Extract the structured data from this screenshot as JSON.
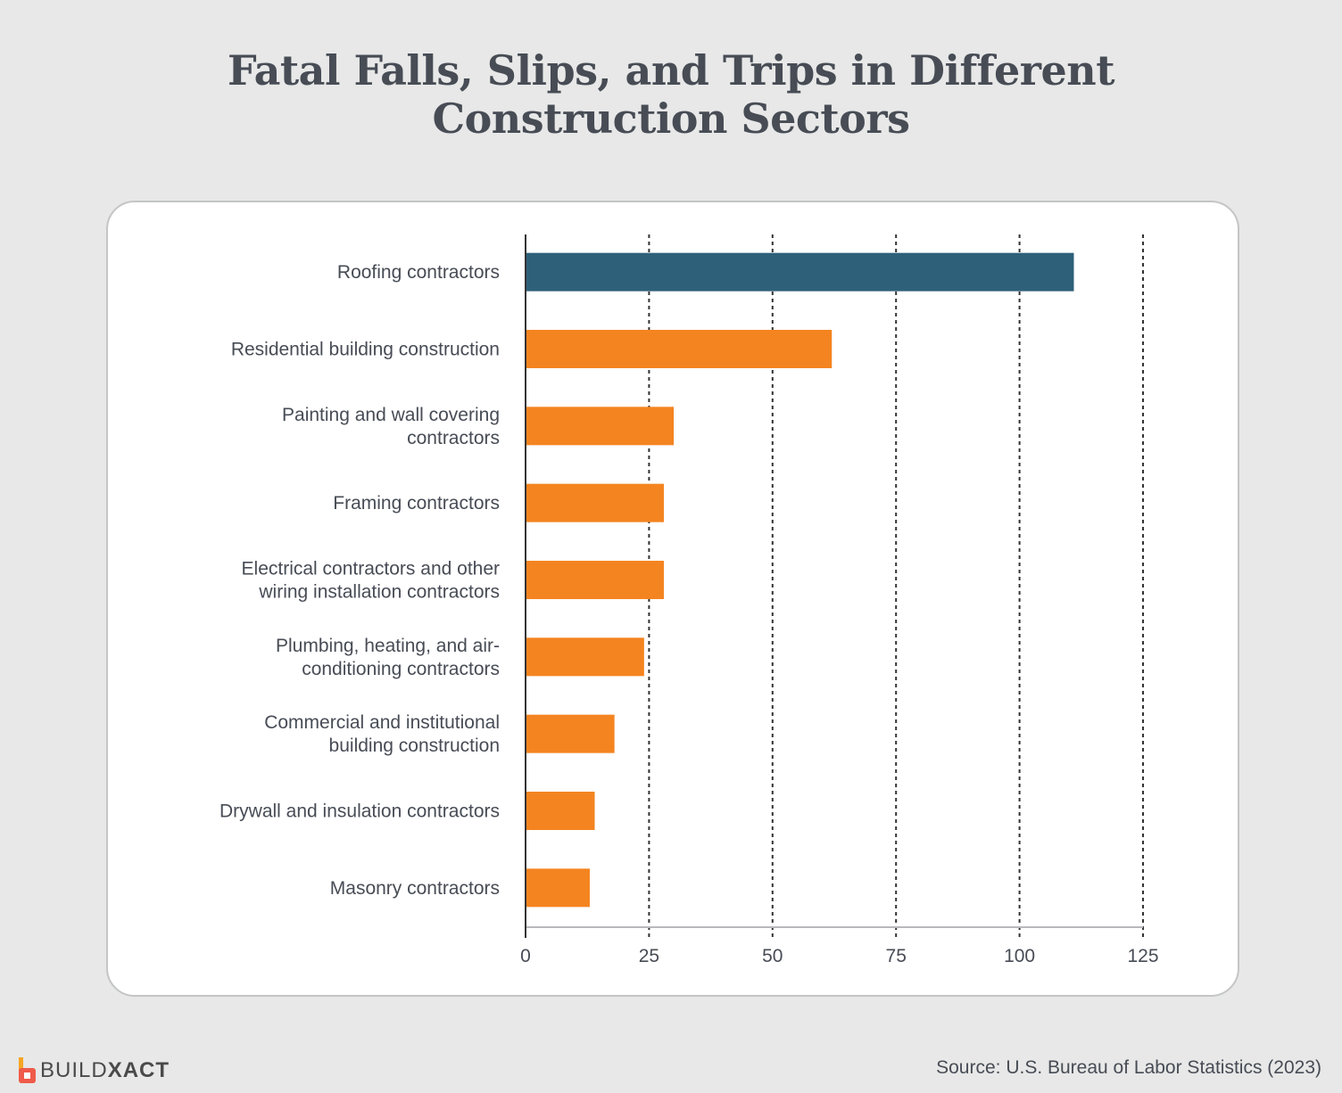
{
  "chart_data": {
    "type": "bar",
    "orientation": "horizontal",
    "title": "Fatal Falls, Slips, and Trips in Different Construction Sectors",
    "title_lines": [
      "Fatal Falls, Slips, and Trips in Different",
      "Construction Sectors"
    ],
    "categories": [
      [
        "Roofing contractors"
      ],
      [
        "Residential building construction"
      ],
      [
        "Painting and wall covering",
        "contractors"
      ],
      [
        "Framing contractors"
      ],
      [
        "Electrical contractors and other",
        "wiring installation contractors"
      ],
      [
        "Plumbing, heating, and air-",
        "conditioning contractors"
      ],
      [
        "Commercial and institutional",
        "building construction"
      ],
      [
        "Drywall and insulation contractors"
      ],
      [
        "Masonry contractors"
      ]
    ],
    "values": [
      111,
      62,
      30,
      28,
      28,
      24,
      18,
      14,
      13
    ],
    "highlight_index": 0,
    "colors": {
      "highlight": "#2e6079",
      "default": "#f48420"
    },
    "xlim": [
      0,
      125
    ],
    "xticks": [
      0,
      25,
      50,
      75,
      100,
      125
    ],
    "xtick_labels": [
      "0",
      "25",
      "50",
      "75",
      "100",
      "125"
    ],
    "grid": "vertical dotted",
    "xlabel": "",
    "ylabel": ""
  },
  "footer": {
    "source": "Source: U.S. Bureau of Labor Statistics (2023)",
    "logo_text_light": "BUILD",
    "logo_text_bold": "XACT"
  }
}
